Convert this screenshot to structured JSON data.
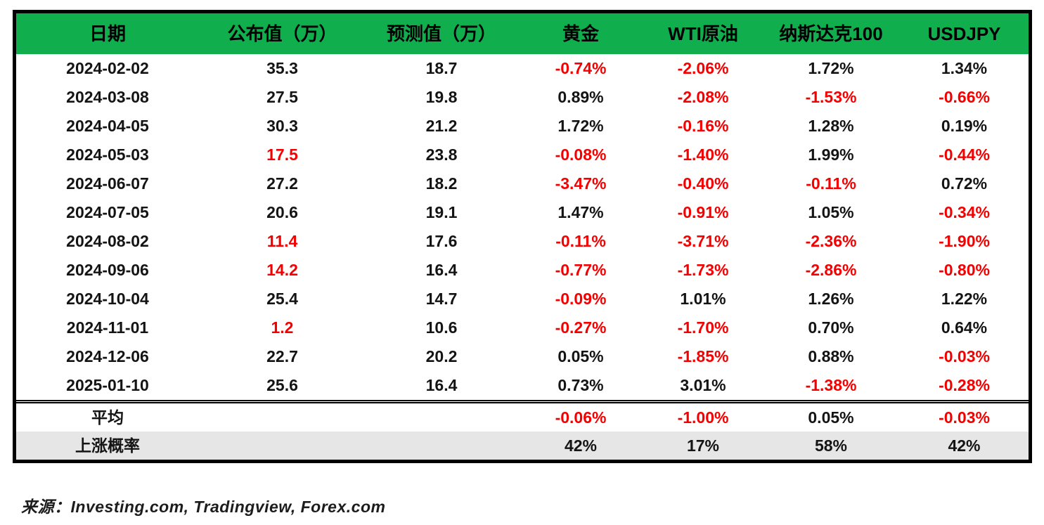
{
  "chart_data": {
    "type": "table",
    "columns": [
      "日期",
      "公布值（万）",
      "预测值（万）",
      "黄金",
      "WTI原油",
      "纳斯达克100",
      "USDJPY"
    ],
    "rows": [
      {
        "date": "2024-02-02",
        "cells": [
          {
            "v": "35.3",
            "red": false
          },
          {
            "v": "18.7",
            "red": false
          },
          {
            "v": "-0.74%",
            "red": true
          },
          {
            "v": "-2.06%",
            "red": true
          },
          {
            "v": "1.72%",
            "red": false
          },
          {
            "v": "1.34%",
            "red": false
          }
        ]
      },
      {
        "date": "2024-03-08",
        "cells": [
          {
            "v": "27.5",
            "red": false
          },
          {
            "v": "19.8",
            "red": false
          },
          {
            "v": "0.89%",
            "red": false
          },
          {
            "v": "-2.08%",
            "red": true
          },
          {
            "v": "-1.53%",
            "red": true
          },
          {
            "v": "-0.66%",
            "red": true
          }
        ]
      },
      {
        "date": "2024-04-05",
        "cells": [
          {
            "v": "30.3",
            "red": false
          },
          {
            "v": "21.2",
            "red": false
          },
          {
            "v": "1.72%",
            "red": false
          },
          {
            "v": "-0.16%",
            "red": true
          },
          {
            "v": "1.28%",
            "red": false
          },
          {
            "v": "0.19%",
            "red": false
          }
        ]
      },
      {
        "date": "2024-05-03",
        "cells": [
          {
            "v": "17.5",
            "red": true
          },
          {
            "v": "23.8",
            "red": false
          },
          {
            "v": "-0.08%",
            "red": true
          },
          {
            "v": "-1.40%",
            "red": true
          },
          {
            "v": "1.99%",
            "red": false
          },
          {
            "v": "-0.44%",
            "red": true
          }
        ]
      },
      {
        "date": "2024-06-07",
        "cells": [
          {
            "v": "27.2",
            "red": false
          },
          {
            "v": "18.2",
            "red": false
          },
          {
            "v": "-3.47%",
            "red": true
          },
          {
            "v": "-0.40%",
            "red": true
          },
          {
            "v": "-0.11%",
            "red": true
          },
          {
            "v": "0.72%",
            "red": false
          }
        ]
      },
      {
        "date": "2024-07-05",
        "cells": [
          {
            "v": "20.6",
            "red": false
          },
          {
            "v": "19.1",
            "red": false
          },
          {
            "v": "1.47%",
            "red": false
          },
          {
            "v": "-0.91%",
            "red": true
          },
          {
            "v": "1.05%",
            "red": false
          },
          {
            "v": "-0.34%",
            "red": true
          }
        ]
      },
      {
        "date": "2024-08-02",
        "cells": [
          {
            "v": "11.4",
            "red": true
          },
          {
            "v": "17.6",
            "red": false
          },
          {
            "v": "-0.11%",
            "red": true
          },
          {
            "v": "-3.71%",
            "red": true
          },
          {
            "v": "-2.36%",
            "red": true
          },
          {
            "v": "-1.90%",
            "red": true
          }
        ]
      },
      {
        "date": "2024-09-06",
        "cells": [
          {
            "v": "14.2",
            "red": true
          },
          {
            "v": "16.4",
            "red": false
          },
          {
            "v": "-0.77%",
            "red": true
          },
          {
            "v": "-1.73%",
            "red": true
          },
          {
            "v": "-2.86%",
            "red": true
          },
          {
            "v": "-0.80%",
            "red": true
          }
        ]
      },
      {
        "date": "2024-10-04",
        "cells": [
          {
            "v": "25.4",
            "red": false
          },
          {
            "v": "14.7",
            "red": false
          },
          {
            "v": "-0.09%",
            "red": true
          },
          {
            "v": "1.01%",
            "red": false
          },
          {
            "v": "1.26%",
            "red": false
          },
          {
            "v": "1.22%",
            "red": false
          }
        ]
      },
      {
        "date": "2024-11-01",
        "cells": [
          {
            "v": "1.2",
            "red": true
          },
          {
            "v": "10.6",
            "red": false
          },
          {
            "v": "-0.27%",
            "red": true
          },
          {
            "v": "-1.70%",
            "red": true
          },
          {
            "v": "0.70%",
            "red": false
          },
          {
            "v": "0.64%",
            "red": false
          }
        ]
      },
      {
        "date": "2024-12-06",
        "cells": [
          {
            "v": "22.7",
            "red": false
          },
          {
            "v": "20.2",
            "red": false
          },
          {
            "v": "0.05%",
            "red": false
          },
          {
            "v": "-1.85%",
            "red": true
          },
          {
            "v": "0.88%",
            "red": false
          },
          {
            "v": "-0.03%",
            "red": true
          }
        ]
      },
      {
        "date": "2025-01-10",
        "cells": [
          {
            "v": "25.6",
            "red": false
          },
          {
            "v": "16.4",
            "red": false
          },
          {
            "v": "0.73%",
            "red": false
          },
          {
            "v": "3.01%",
            "red": false
          },
          {
            "v": "-1.38%",
            "red": true
          },
          {
            "v": "-0.28%",
            "red": true
          }
        ]
      }
    ],
    "summary_rows": [
      {
        "label": "平均",
        "shaded": false,
        "cells": [
          {
            "v": "",
            "red": false
          },
          {
            "v": "",
            "red": false
          },
          {
            "v": "-0.06%",
            "red": true
          },
          {
            "v": "-1.00%",
            "red": true
          },
          {
            "v": "0.05%",
            "red": false
          },
          {
            "v": "-0.03%",
            "red": true
          }
        ]
      },
      {
        "label": "上涨概率",
        "shaded": true,
        "cells": [
          {
            "v": "",
            "red": false
          },
          {
            "v": "",
            "red": false
          },
          {
            "v": "42%",
            "red": false
          },
          {
            "v": "17%",
            "red": false
          },
          {
            "v": "58%",
            "red": false
          },
          {
            "v": "42%",
            "red": false
          }
        ]
      }
    ]
  },
  "footer": {
    "source_text": "来源：Investing.com, Tradingview, Forex.com"
  },
  "colors": {
    "header_green": "#10AE4D",
    "negative_red": "#F40000",
    "text_black": "#141414",
    "shaded_row": "#E6E6E6",
    "border_black": "#000000"
  }
}
